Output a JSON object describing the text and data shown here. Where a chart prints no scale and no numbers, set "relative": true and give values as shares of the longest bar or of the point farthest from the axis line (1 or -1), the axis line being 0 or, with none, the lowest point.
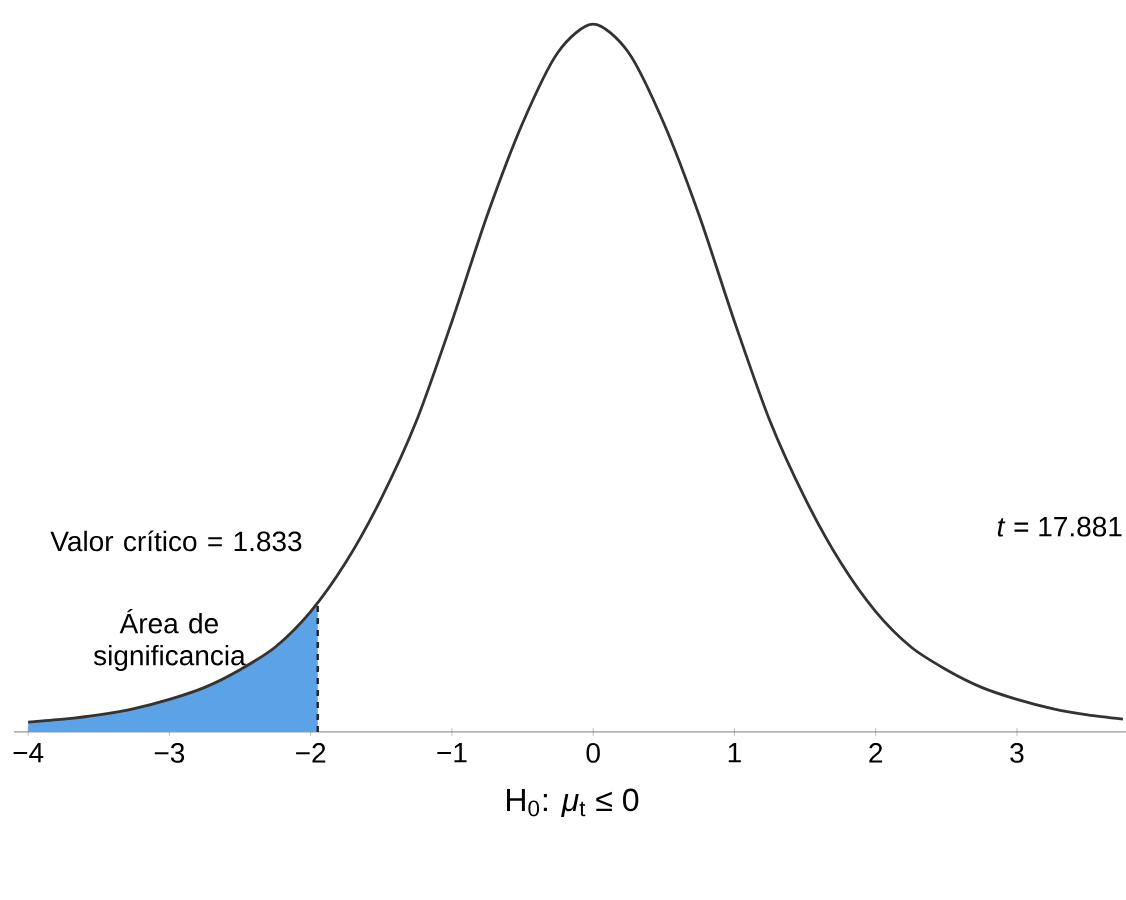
{
  "chart_data": {
    "type": "line",
    "relative": true,
    "xlabel": "H$_{0}$: *μ*$_{t}$ ≤ 0",
    "xlim": [
      -4.1,
      3.8
    ],
    "xticks": [
      {
        "value": -4,
        "label": "−4"
      },
      {
        "value": -3,
        "label": "−3"
      },
      {
        "value": -2,
        "label": "−2"
      },
      {
        "value": -1,
        "label": "−1"
      },
      0,
      1,
      2,
      3
    ],
    "series": [
      {
        "type": "area",
        "color": "#5ba3e6",
        "x": [
          -4,
          -3.75,
          -3.5,
          -3.25,
          -3,
          -2.75,
          -2.5,
          -2.25,
          -2,
          -1.95
        ],
        "values": [
          0.014,
          0.018,
          0.024,
          0.033,
          0.046,
          0.063,
          0.088,
          0.12,
          0.17,
          0.18
        ]
      },
      {
        "color": "#333333",
        "x": [
          -4,
          -3.75,
          -3.5,
          -3.25,
          -3,
          -2.75,
          -2.5,
          -2.25,
          -2,
          -1.75,
          -1.5,
          -1.25,
          -1,
          -0.75,
          -0.5,
          -0.25,
          0,
          0.25,
          0.5,
          0.75,
          1,
          1.25,
          1.5,
          1.75,
          2,
          2.25,
          2.5,
          2.75,
          3,
          3.25,
          3.5,
          3.75
        ],
        "values": [
          0.014,
          0.018,
          0.024,
          0.033,
          0.046,
          0.063,
          0.088,
          0.12,
          0.17,
          0.24,
          0.33,
          0.44,
          0.58,
          0.73,
          0.86,
          0.96,
          1,
          0.96,
          0.86,
          0.73,
          0.58,
          0.44,
          0.33,
          0.24,
          0.17,
          0.12,
          0.088,
          0.063,
          0.046,
          0.033,
          0.024,
          0.018
        ]
      }
    ],
    "ref_lines": [
      {
        "axis": "x",
        "value": -1.95,
        "line_style": "dashed",
        "color": "#222222"
      }
    ],
    "annotations": [
      "Valor crítico = 1.833",
      "Área de significancia",
      "*t* = 17.881"
    ]
  }
}
